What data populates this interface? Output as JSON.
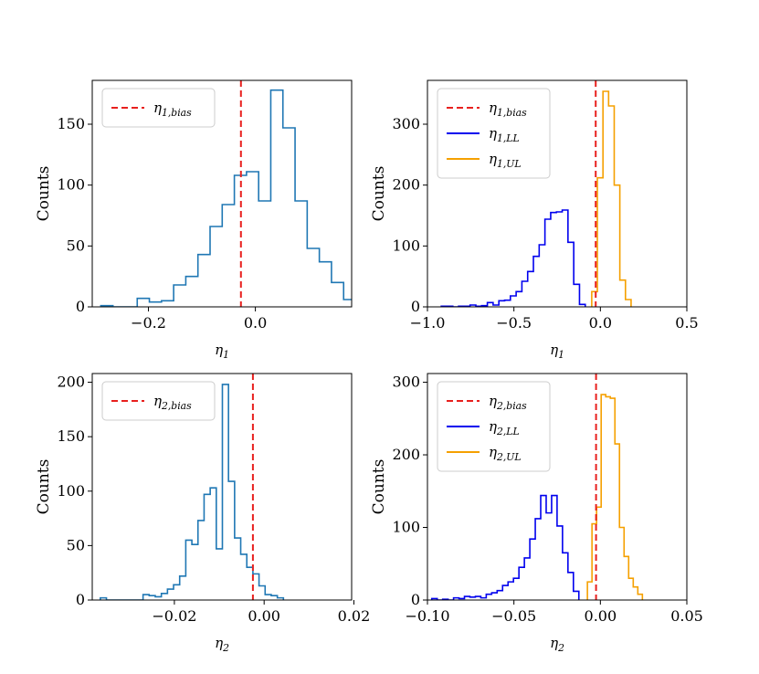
{
  "figure": {
    "background": "#ffffff"
  },
  "chart_data": [
    {
      "id": "top-left",
      "type": "histogram",
      "xlabel": "η1",
      "ylabel": "Counts",
      "xlim": [
        -0.305,
        0.18
      ],
      "ylim": [
        0,
        186
      ],
      "xticks": [
        -0.2,
        0.0
      ],
      "xtick_labels": [
        "−0.2",
        "0.0"
      ],
      "yticks": [
        0,
        50,
        100,
        150
      ],
      "ytick_labels": [
        "0",
        "50",
        "100",
        "150"
      ],
      "legend_position": "top-left",
      "legend": [
        {
          "label": "η1,bias",
          "color": "#e8201e",
          "style": "dashed"
        }
      ],
      "vlines": [
        {
          "x": -0.027,
          "color": "#e8201e",
          "style": "dashed",
          "name": "bias-line"
        }
      ],
      "series": [
        {
          "name": "η1",
          "color": "#1f77b4",
          "bins_start": -0.289,
          "bin_width": 0.0227,
          "counts": [
            1,
            0,
            0,
            7,
            4,
            5,
            18,
            25,
            43,
            66,
            84,
            108,
            111,
            87,
            178,
            147,
            87,
            48,
            37,
            20,
            6,
            5,
            3
          ]
        }
      ]
    },
    {
      "id": "top-right",
      "type": "histogram",
      "xlabel": "η1",
      "ylabel": "Counts",
      "xlim": [
        -1.0,
        0.5
      ],
      "ylim": [
        0,
        372
      ],
      "xticks": [
        -1.0,
        -0.5,
        0.0,
        0.5
      ],
      "xtick_labels": [
        "−1.0",
        "−0.5",
        "0.0",
        "0.5"
      ],
      "yticks": [
        0,
        100,
        200,
        300
      ],
      "ytick_labels": [
        "0",
        "100",
        "200",
        "300"
      ],
      "legend_position": "top-left",
      "legend": [
        {
          "label": "η1,bias",
          "color": "#e8201e",
          "style": "dashed"
        },
        {
          "label": "η1,LL",
          "color": "#0000ee",
          "style": "solid"
        },
        {
          "label": "η1,UL",
          "color": "#f5a000",
          "style": "solid"
        }
      ],
      "vlines": [
        {
          "x": -0.027,
          "color": "#e8201e",
          "style": "dashed",
          "name": "bias-line"
        }
      ],
      "series": [
        {
          "name": "η1,LL",
          "color": "#0000ee",
          "bins_start": -0.92,
          "bin_width": 0.0333,
          "counts": [
            1,
            1,
            0,
            1,
            1,
            3,
            1,
            2,
            7,
            3,
            10,
            11,
            18,
            25,
            42,
            58,
            83,
            102,
            144,
            155,
            156,
            159,
            106,
            37,
            4
          ]
        },
        {
          "name": "η1,UL",
          "color": "#f5a000",
          "bins_start": -0.05,
          "bin_width": 0.0325,
          "counts": [
            25,
            212,
            354,
            330,
            200,
            44,
            12
          ]
        }
      ]
    },
    {
      "id": "bottom-left",
      "type": "histogram",
      "xlabel": "η2",
      "ylabel": "Counts",
      "xlim": [
        -0.0383,
        0.0195
      ],
      "ylim": [
        0,
        208
      ],
      "xticks": [
        -0.02,
        0.0,
        0.02
      ],
      "xtick_labels": [
        "−0.02",
        "0.00",
        "0.02"
      ],
      "yticks": [
        0,
        50,
        100,
        150,
        200
      ],
      "ytick_labels": [
        "0",
        "50",
        "100",
        "150",
        "200"
      ],
      "legend_position": "top-left",
      "legend": [
        {
          "label": "η2,bias",
          "color": "#e8201e",
          "style": "dashed"
        }
      ],
      "vlines": [
        {
          "x": -0.0025,
          "color": "#e8201e",
          "style": "dashed",
          "name": "bias-line"
        }
      ],
      "series": [
        {
          "name": "η2",
          "color": "#1f77b4",
          "bins_start": -0.0365,
          "bin_width": 0.00136,
          "counts": [
            2,
            0,
            0,
            0,
            0,
            0,
            0,
            5,
            4,
            3,
            6,
            10,
            14,
            22,
            55,
            51,
            73,
            97,
            103,
            47,
            198,
            109,
            57,
            42,
            30,
            24,
            13,
            5,
            4,
            2
          ]
        }
      ]
    },
    {
      "id": "bottom-right",
      "type": "histogram",
      "xlabel": "η2",
      "ylabel": "Counts",
      "xlim": [
        -0.1,
        0.05
      ],
      "ylim": [
        0,
        312
      ],
      "xticks": [
        -0.1,
        -0.05,
        0.0,
        0.05
      ],
      "xtick_labels": [
        "−0.10",
        "−0.05",
        "0.00",
        "0.05"
      ],
      "yticks": [
        0,
        100,
        200,
        300
      ],
      "ytick_labels": [
        "0",
        "100",
        "200",
        "300"
      ],
      "legend_position": "top-left",
      "legend": [
        {
          "label": "η2,bias",
          "color": "#e8201e",
          "style": "dashed"
        },
        {
          "label": "η2,LL",
          "color": "#0000ee",
          "style": "solid"
        },
        {
          "label": "η2,UL",
          "color": "#f5a000",
          "style": "solid"
        }
      ],
      "vlines": [
        {
          "x": -0.0025,
          "color": "#e8201e",
          "style": "dashed",
          "name": "bias-line"
        }
      ],
      "series": [
        {
          "name": "η2,LL",
          "color": "#0000ee",
          "bins_start": -0.0975,
          "bin_width": 0.00315,
          "counts": [
            2,
            0,
            1,
            0,
            3,
            2,
            5,
            4,
            5,
            3,
            8,
            10,
            13,
            20,
            25,
            30,
            45,
            58,
            84,
            112,
            144,
            120,
            144,
            102,
            65,
            38,
            12
          ]
        },
        {
          "name": "η2,UL",
          "color": "#f5a000",
          "bins_start": -0.0075,
          "bin_width": 0.00265,
          "counts": [
            25,
            105,
            128,
            283,
            280,
            278,
            215,
            100,
            60,
            30,
            18,
            8
          ]
        }
      ]
    }
  ]
}
